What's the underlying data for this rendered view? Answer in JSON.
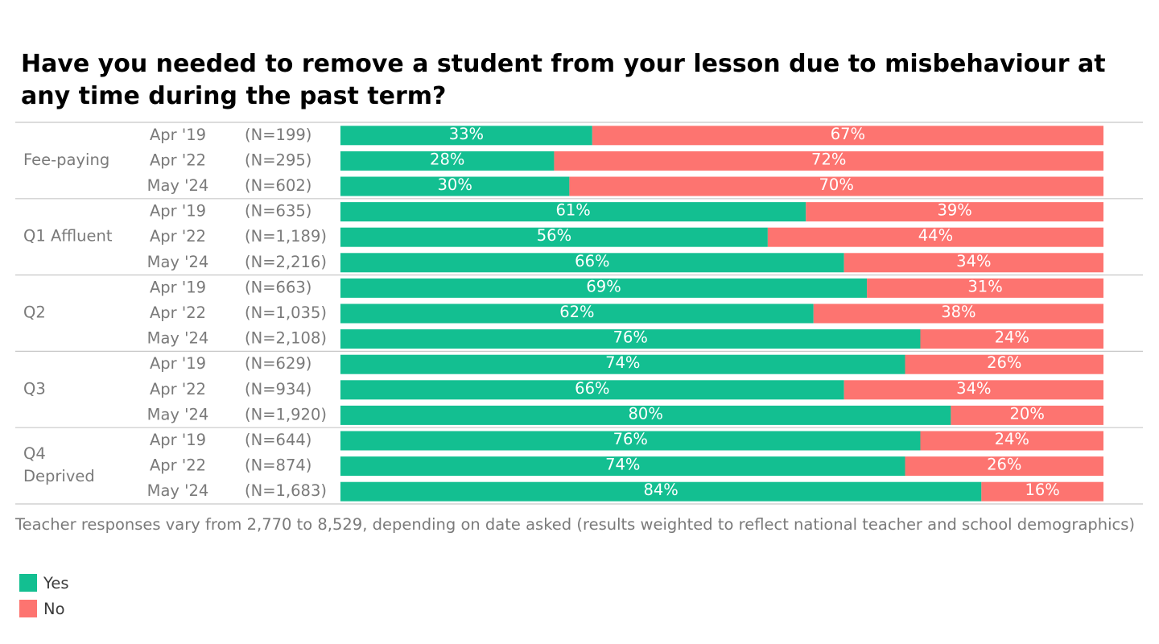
{
  "chart_data": {
    "type": "bar",
    "orientation": "horizontal",
    "stacked": true,
    "title": "Have you needed to remove a student from your lesson due to misbehaviour at any time during the past term?",
    "note": "Teacher responses vary from 2,770 to 8,529, depending on date asked (results weighted to reflect national teacher and school demographics)",
    "xlim": [
      0,
      100
    ],
    "value_suffix": "%",
    "series": [
      {
        "name": "Yes",
        "color": "#13bf91"
      },
      {
        "name": "No",
        "color": "#fd7470"
      }
    ],
    "groups": [
      {
        "name": "Fee-paying",
        "rows": [
          {
            "date": "Apr '19",
            "n": "(N=199)",
            "values": [
              33,
              67
            ]
          },
          {
            "date": "Apr '22",
            "n": "(N=295)",
            "values": [
              28,
              72
            ]
          },
          {
            "date": "May '24",
            "n": "(N=602)",
            "values": [
              30,
              70
            ]
          }
        ]
      },
      {
        "name": "Q1 Affluent",
        "rows": [
          {
            "date": "Apr '19",
            "n": "(N=635)",
            "values": [
              61,
              39
            ]
          },
          {
            "date": "Apr '22",
            "n": "(N=1,189)",
            "values": [
              56,
              44
            ]
          },
          {
            "date": "May '24",
            "n": "(N=2,216)",
            "values": [
              66,
              34
            ]
          }
        ]
      },
      {
        "name": "Q2",
        "rows": [
          {
            "date": "Apr '19",
            "n": "(N=663)",
            "values": [
              69,
              31
            ]
          },
          {
            "date": "Apr '22",
            "n": "(N=1,035)",
            "values": [
              62,
              38
            ]
          },
          {
            "date": "May '24",
            "n": "(N=2,108)",
            "values": [
              76,
              24
            ]
          }
        ]
      },
      {
        "name": "Q3",
        "rows": [
          {
            "date": "Apr '19",
            "n": "(N=629)",
            "values": [
              74,
              26
            ]
          },
          {
            "date": "Apr '22",
            "n": "(N=934)",
            "values": [
              66,
              34
            ]
          },
          {
            "date": "May '24",
            "n": "(N=1,920)",
            "values": [
              80,
              20
            ]
          }
        ]
      },
      {
        "name": "Q4 Deprived",
        "rows": [
          {
            "date": "Apr '19",
            "n": "(N=644)",
            "values": [
              76,
              24
            ]
          },
          {
            "date": "Apr '22",
            "n": "(N=874)",
            "values": [
              74,
              26
            ]
          },
          {
            "date": "May '24",
            "n": "(N=1,683)",
            "values": [
              84,
              16
            ]
          }
        ]
      }
    ],
    "legend": {
      "position": "bottom-left"
    }
  }
}
